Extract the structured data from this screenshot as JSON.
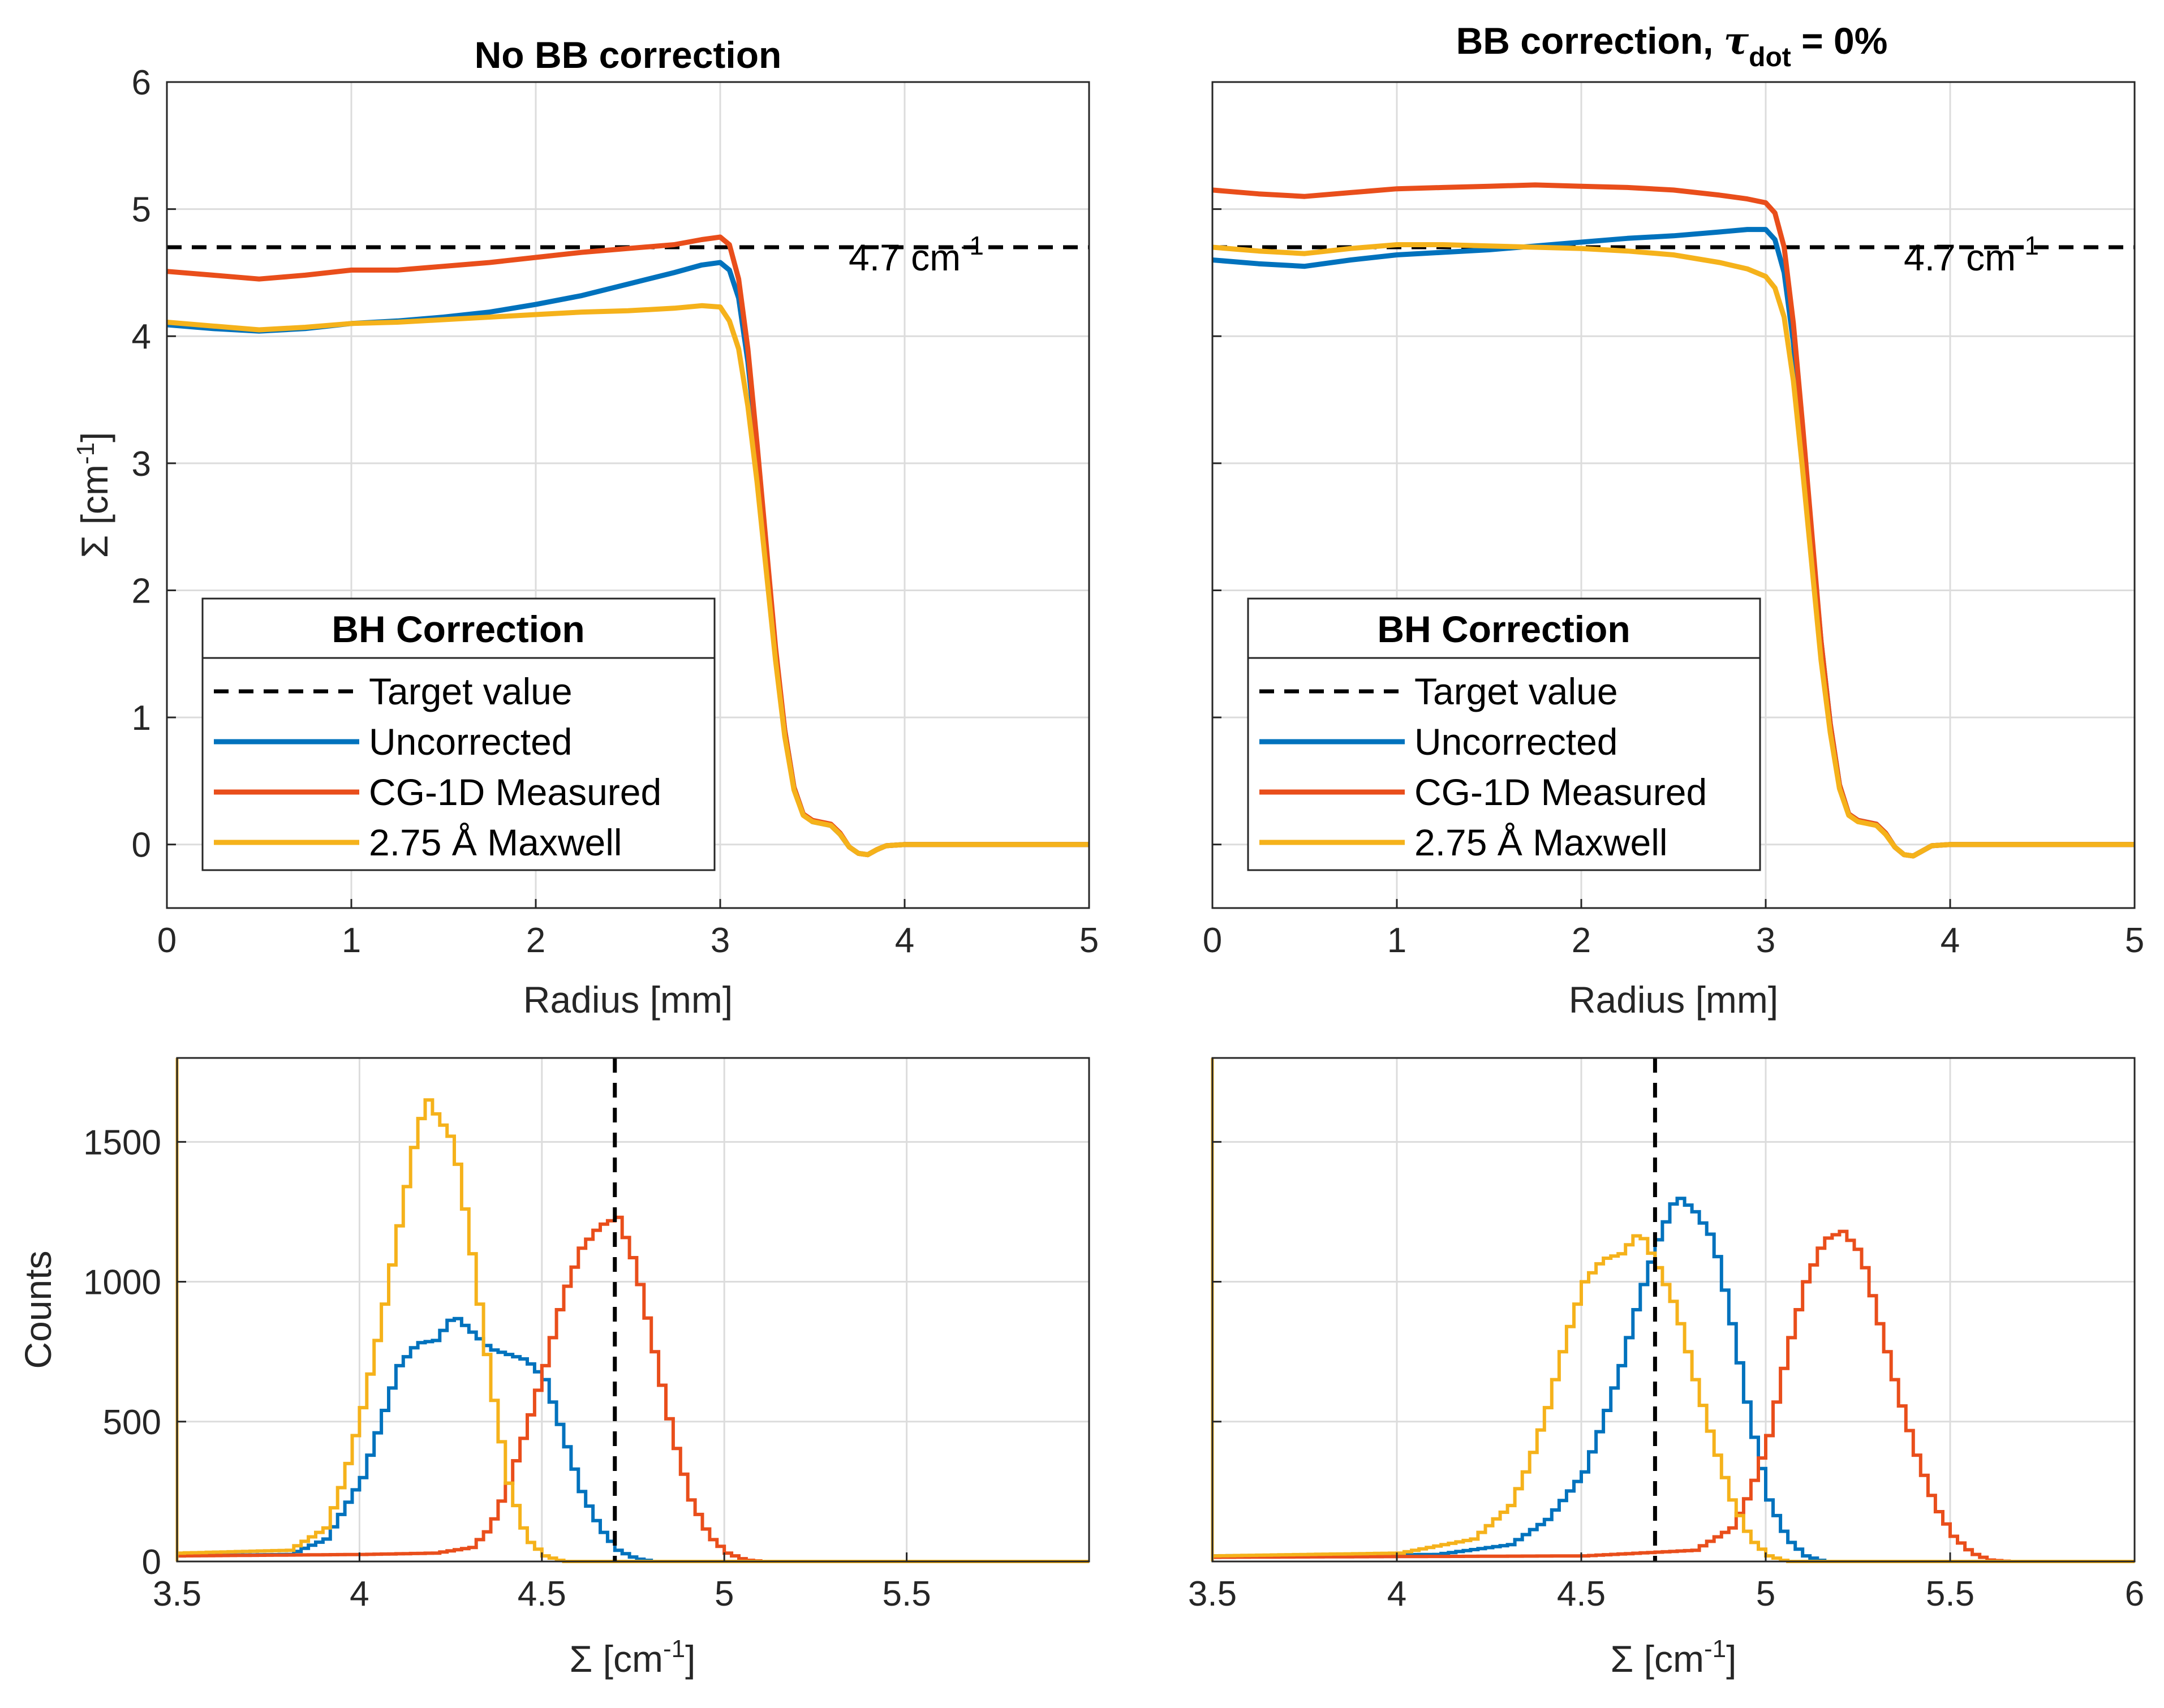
{
  "colors": {
    "uncorrected": "#0072BD",
    "cg1d": "#E94E1B",
    "maxwell": "#F5B21B",
    "target": "#000000",
    "axes": "#262626",
    "grid": "#dcdcdc"
  },
  "legend": {
    "title": "BH Correction",
    "entries": [
      "Target value",
      "Uncorrected",
      "CG-1D Measured",
      "2.75 Å Maxwell"
    ]
  },
  "chart_data": [
    {
      "type": "line",
      "panel": "top-left",
      "title": "No BB correction",
      "xlabel": "Radius [mm]",
      "ylabel_base": "Σ [cm",
      "ylabel_sup": "-1",
      "ylabel_end": "]",
      "xlim": [
        0,
        5
      ],
      "ylim": [
        -0.5,
        6
      ],
      "xticks": [
        "0",
        "1",
        "2",
        "3",
        "4",
        "5"
      ],
      "yticks": [
        "0",
        "1",
        "2",
        "3",
        "4",
        "5",
        "6"
      ],
      "target": 4.7,
      "target_label_base": "4.7 cm",
      "target_label_sup": "-1",
      "legend_position": "lower-left",
      "series": [
        {
          "name": "Uncorrected",
          "x": [
            0,
            0.25,
            0.5,
            0.75,
            1,
            1.25,
            1.5,
            1.75,
            2,
            2.25,
            2.5,
            2.75,
            2.9,
            3.0,
            3.05,
            3.1,
            3.15,
            3.2,
            3.25,
            3.3,
            3.35,
            3.4,
            3.45,
            3.5,
            3.6,
            3.65,
            3.7,
            3.75,
            3.8,
            3.85,
            3.9,
            4,
            4.5,
            5
          ],
          "y": [
            4.09,
            4.06,
            4.04,
            4.06,
            4.1,
            4.12,
            4.15,
            4.19,
            4.25,
            4.32,
            4.41,
            4.5,
            4.56,
            4.58,
            4.52,
            4.3,
            3.8,
            3.1,
            2.3,
            1.5,
            0.9,
            0.45,
            0.24,
            0.18,
            0.15,
            0.08,
            -0.02,
            -0.07,
            -0.08,
            -0.04,
            -0.01,
            0,
            0,
            0
          ]
        },
        {
          "name": "CG-1D Measured",
          "x": [
            0,
            0.25,
            0.5,
            0.75,
            1,
            1.25,
            1.5,
            1.75,
            2,
            2.25,
            2.5,
            2.75,
            2.9,
            3.0,
            3.05,
            3.1,
            3.15,
            3.2,
            3.25,
            3.3,
            3.35,
            3.4,
            3.45,
            3.5,
            3.6,
            3.65,
            3.7,
            3.75,
            3.8,
            3.85,
            3.9,
            4,
            4.5,
            5
          ],
          "y": [
            4.51,
            4.48,
            4.45,
            4.48,
            4.52,
            4.52,
            4.55,
            4.58,
            4.62,
            4.66,
            4.69,
            4.72,
            4.76,
            4.78,
            4.72,
            4.45,
            3.9,
            3.15,
            2.35,
            1.55,
            0.9,
            0.45,
            0.24,
            0.19,
            0.16,
            0.09,
            -0.02,
            -0.07,
            -0.08,
            -0.04,
            -0.01,
            0,
            0,
            0
          ]
        },
        {
          "name": "2.75 Å Maxwell",
          "x": [
            0,
            0.25,
            0.5,
            0.75,
            1,
            1.25,
            1.5,
            1.75,
            2,
            2.25,
            2.5,
            2.75,
            2.9,
            3.0,
            3.05,
            3.1,
            3.15,
            3.2,
            3.25,
            3.3,
            3.35,
            3.4,
            3.45,
            3.5,
            3.6,
            3.65,
            3.7,
            3.75,
            3.8,
            3.85,
            3.9,
            4,
            4.5,
            5
          ],
          "y": [
            4.11,
            4.08,
            4.05,
            4.07,
            4.1,
            4.11,
            4.13,
            4.15,
            4.17,
            4.19,
            4.2,
            4.22,
            4.24,
            4.23,
            4.12,
            3.9,
            3.45,
            2.85,
            2.15,
            1.45,
            0.85,
            0.43,
            0.23,
            0.18,
            0.15,
            0.08,
            -0.02,
            -0.07,
            -0.08,
            -0.04,
            -0.01,
            0,
            0,
            0
          ]
        }
      ]
    },
    {
      "type": "line",
      "panel": "top-right",
      "title_base": "BB correction, ",
      "title_tau": "τ",
      "title_sub": "dot",
      "title_end": " = 0%",
      "xlabel": "Radius [mm]",
      "xlim": [
        0,
        5
      ],
      "ylim": [
        -0.5,
        6
      ],
      "xticks": [
        "0",
        "1",
        "2",
        "3",
        "4",
        "5"
      ],
      "target": 4.7,
      "target_label_base": "4.7 cm",
      "target_label_sup": "-1",
      "legend_position": "lower-left",
      "series": [
        {
          "name": "Uncorrected",
          "x": [
            0,
            0.25,
            0.5,
            0.75,
            1,
            1.25,
            1.5,
            1.75,
            2,
            2.25,
            2.5,
            2.75,
            2.9,
            3.0,
            3.05,
            3.1,
            3.15,
            3.2,
            3.25,
            3.3,
            3.35,
            3.4,
            3.45,
            3.5,
            3.6,
            3.65,
            3.7,
            3.75,
            3.8,
            3.85,
            3.9,
            4,
            4.5,
            5
          ],
          "y": [
            4.6,
            4.57,
            4.55,
            4.6,
            4.64,
            4.66,
            4.68,
            4.71,
            4.74,
            4.77,
            4.79,
            4.82,
            4.84,
            4.84,
            4.76,
            4.5,
            3.95,
            3.2,
            2.4,
            1.6,
            0.95,
            0.47,
            0.24,
            0.19,
            0.16,
            0.09,
            -0.02,
            -0.08,
            -0.09,
            -0.05,
            -0.01,
            0,
            0,
            0
          ]
        },
        {
          "name": "CG-1D Measured",
          "x": [
            0,
            0.25,
            0.5,
            0.75,
            1,
            1.25,
            1.5,
            1.75,
            2,
            2.25,
            2.5,
            2.75,
            2.9,
            3.0,
            3.05,
            3.1,
            3.15,
            3.2,
            3.25,
            3.3,
            3.35,
            3.4,
            3.45,
            3.5,
            3.6,
            3.65,
            3.7,
            3.75,
            3.8,
            3.85,
            3.9,
            4,
            4.5,
            5
          ],
          "y": [
            5.15,
            5.12,
            5.1,
            5.13,
            5.16,
            5.17,
            5.18,
            5.19,
            5.18,
            5.17,
            5.15,
            5.11,
            5.08,
            5.05,
            4.97,
            4.7,
            4.1,
            3.3,
            2.45,
            1.6,
            0.95,
            0.47,
            0.24,
            0.19,
            0.16,
            0.09,
            -0.02,
            -0.08,
            -0.09,
            -0.05,
            -0.01,
            0,
            0,
            0
          ]
        },
        {
          "name": "2.75 Å Maxwell",
          "x": [
            0,
            0.25,
            0.5,
            0.75,
            1,
            1.25,
            1.5,
            1.75,
            2,
            2.25,
            2.5,
            2.75,
            2.9,
            3.0,
            3.05,
            3.1,
            3.15,
            3.2,
            3.25,
            3.3,
            3.35,
            3.4,
            3.45,
            3.5,
            3.6,
            3.65,
            3.7,
            3.75,
            3.8,
            3.85,
            3.9,
            4,
            4.5,
            5
          ],
          "y": [
            4.7,
            4.67,
            4.65,
            4.69,
            4.72,
            4.72,
            4.71,
            4.7,
            4.69,
            4.67,
            4.64,
            4.58,
            4.53,
            4.47,
            4.38,
            4.15,
            3.65,
            2.95,
            2.2,
            1.45,
            0.88,
            0.44,
            0.23,
            0.18,
            0.15,
            0.08,
            -0.02,
            -0.08,
            -0.09,
            -0.05,
            -0.01,
            0,
            0,
            0
          ]
        }
      ]
    },
    {
      "type": "histogram",
      "panel": "bottom-left",
      "xlabel_base": "Σ [cm",
      "xlabel_sup": "-1",
      "xlabel_end": "]",
      "ylabel": "Counts",
      "xlim": [
        3.5,
        6
      ],
      "ylim": [
        0,
        1800
      ],
      "xticks": [
        "3.5",
        "4",
        "4.5",
        "5",
        "5.5"
      ],
      "xtick_values": [
        3.5,
        4,
        4.5,
        5,
        5.5
      ],
      "yticks": [
        "0",
        "500",
        "1000",
        "1500"
      ],
      "ytick_values": [
        0,
        500,
        1000,
        1500
      ],
      "target": 4.7,
      "series": [
        {
          "name": "Uncorrected",
          "center": 4.3,
          "points": [
            [
              3.5,
              20
            ],
            [
              3.8,
              25
            ],
            [
              3.9,
              80
            ],
            [
              4.0,
              300
            ],
            [
              4.05,
              500
            ],
            [
              4.1,
              700
            ],
            [
              4.15,
              780
            ],
            [
              4.2,
              790
            ],
            [
              4.25,
              880
            ],
            [
              4.3,
              820
            ],
            [
              4.35,
              760
            ],
            [
              4.4,
              740
            ],
            [
              4.45,
              720
            ],
            [
              4.5,
              650
            ],
            [
              4.55,
              450
            ],
            [
              4.6,
              250
            ],
            [
              4.65,
              120
            ],
            [
              4.7,
              40
            ],
            [
              4.75,
              10
            ],
            [
              4.8,
              0
            ],
            [
              6,
              0
            ]
          ]
        },
        {
          "name": "CG-1D Measured",
          "points": [
            [
              3.5,
              20
            ],
            [
              4.0,
              25
            ],
            [
              4.2,
              30
            ],
            [
              4.3,
              50
            ],
            [
              4.35,
              120
            ],
            [
              4.4,
              280
            ],
            [
              4.45,
              480
            ],
            [
              4.5,
              700
            ],
            [
              4.55,
              950
            ],
            [
              4.6,
              1120
            ],
            [
              4.65,
              1200
            ],
            [
              4.7,
              1230
            ],
            [
              4.75,
              1050
            ],
            [
              4.8,
              750
            ],
            [
              4.85,
              450
            ],
            [
              4.9,
              220
            ],
            [
              4.95,
              90
            ],
            [
              5.0,
              30
            ],
            [
              5.05,
              5
            ],
            [
              5.1,
              0
            ],
            [
              6,
              0
            ]
          ]
        },
        {
          "name": "2.75 Å Maxwell",
          "points": [
            [
              3.5,
              30
            ],
            [
              3.8,
              40
            ],
            [
              3.9,
              120
            ],
            [
              3.95,
              300
            ],
            [
              4.0,
              550
            ],
            [
              4.05,
              850
            ],
            [
              4.1,
              1200
            ],
            [
              4.15,
              1550
            ],
            [
              4.18,
              1650
            ],
            [
              4.2,
              1600
            ],
            [
              4.25,
              1500
            ],
            [
              4.3,
              1100
            ],
            [
              4.35,
              650
            ],
            [
              4.4,
              280
            ],
            [
              4.45,
              80
            ],
            [
              4.5,
              20
            ],
            [
              4.55,
              0
            ],
            [
              6,
              0
            ]
          ]
        }
      ]
    },
    {
      "type": "histogram",
      "panel": "bottom-right",
      "xlabel_base": "Σ [cm",
      "xlabel_sup": "-1",
      "xlabel_end": "]",
      "xlim": [
        3.5,
        6
      ],
      "ylim": [
        0,
        1800
      ],
      "xticks": [
        "3.5",
        "4",
        "4.5",
        "5",
        "5.5",
        "6"
      ],
      "xtick_values": [
        3.5,
        4,
        4.5,
        5,
        5.5,
        6
      ],
      "target": 4.7,
      "series": [
        {
          "name": "Uncorrected",
          "points": [
            [
              3.5,
              20
            ],
            [
              4.1,
              25
            ],
            [
              4.3,
              60
            ],
            [
              4.4,
              150
            ],
            [
              4.5,
              320
            ],
            [
              4.55,
              500
            ],
            [
              4.6,
              700
            ],
            [
              4.65,
              950
            ],
            [
              4.7,
              1150
            ],
            [
              4.75,
              1310
            ],
            [
              4.8,
              1250
            ],
            [
              4.85,
              1150
            ],
            [
              4.9,
              850
            ],
            [
              4.95,
              500
            ],
            [
              5.0,
              220
            ],
            [
              5.05,
              80
            ],
            [
              5.1,
              20
            ],
            [
              5.15,
              0
            ],
            [
              6,
              0
            ]
          ]
        },
        {
          "name": "CG-1D Measured",
          "points": [
            [
              3.5,
              15
            ],
            [
              4.5,
              20
            ],
            [
              4.8,
              40
            ],
            [
              4.9,
              120
            ],
            [
              4.95,
              250
            ],
            [
              5.0,
              450
            ],
            [
              5.05,
              750
            ],
            [
              5.1,
              1000
            ],
            [
              5.15,
              1150
            ],
            [
              5.2,
              1180
            ],
            [
              5.25,
              1100
            ],
            [
              5.3,
              850
            ],
            [
              5.35,
              600
            ],
            [
              5.4,
              380
            ],
            [
              5.45,
              200
            ],
            [
              5.5,
              90
            ],
            [
              5.55,
              30
            ],
            [
              5.6,
              5
            ],
            [
              5.65,
              0
            ],
            [
              6,
              0
            ]
          ]
        },
        {
          "name": "2.75 Å Maxwell",
          "points": [
            [
              3.5,
              20
            ],
            [
              4.0,
              30
            ],
            [
              4.2,
              80
            ],
            [
              4.3,
              200
            ],
            [
              4.35,
              350
            ],
            [
              4.4,
              550
            ],
            [
              4.45,
              800
            ],
            [
              4.5,
              1000
            ],
            [
              4.55,
              1080
            ],
            [
              4.6,
              1100
            ],
            [
              4.65,
              1180
            ],
            [
              4.7,
              1050
            ],
            [
              4.75,
              900
            ],
            [
              4.8,
              650
            ],
            [
              4.85,
              420
            ],
            [
              4.9,
              220
            ],
            [
              4.95,
              80
            ],
            [
              5.0,
              20
            ],
            [
              5.05,
              0
            ],
            [
              6,
              0
            ]
          ]
        }
      ]
    }
  ]
}
